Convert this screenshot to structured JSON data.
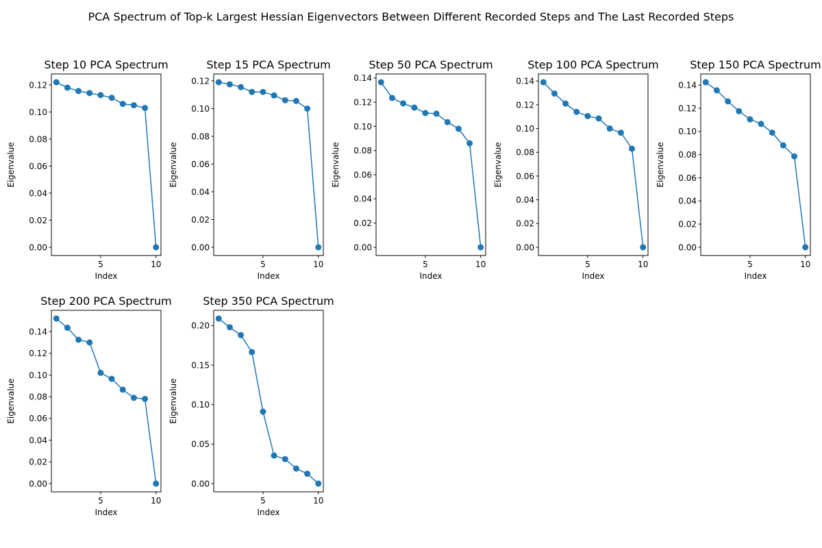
{
  "figure": {
    "suptitle": "PCA Spectrum of Top-k Largest Hessian Eigenvectors Between Different Recorded Steps and The Last Recorded Steps",
    "line_color": "#1f77b4"
  },
  "chart_data": [
    {
      "type": "line",
      "title": "Step 10 PCA Spectrum",
      "xlabel": "Index",
      "ylabel": "Eigenvalue",
      "x": [
        1,
        2,
        3,
        4,
        5,
        6,
        7,
        8,
        9,
        10
      ],
      "values": [
        0.122,
        0.118,
        0.1155,
        0.114,
        0.1125,
        0.1105,
        0.106,
        0.105,
        0.103,
        0.0
      ],
      "xlim": [
        0.55,
        10.45
      ],
      "ylim": [
        -0.0061,
        0.1281
      ],
      "xticks": [
        5,
        10
      ],
      "yticks": [
        0.0,
        0.02,
        0.04,
        0.06,
        0.08,
        0.1,
        0.12
      ],
      "ytick_labels": [
        "0.00",
        "0.02",
        "0.04",
        "0.06",
        "0.08",
        "0.10",
        "0.12"
      ]
    },
    {
      "type": "line",
      "title": "Step 15 PCA Spectrum",
      "xlabel": "Index",
      "ylabel": "Eigenvalue",
      "x": [
        1,
        2,
        3,
        4,
        5,
        6,
        7,
        8,
        9,
        10
      ],
      "values": [
        0.119,
        0.1175,
        0.1155,
        0.112,
        0.112,
        0.1095,
        0.106,
        0.1055,
        0.1,
        0.0
      ],
      "xlim": [
        0.55,
        10.45
      ],
      "ylim": [
        -0.00595,
        0.12495
      ],
      "xticks": [
        5,
        10
      ],
      "yticks": [
        0.0,
        0.02,
        0.04,
        0.06,
        0.08,
        0.1,
        0.12
      ],
      "ytick_labels": [
        "0.00",
        "0.02",
        "0.04",
        "0.06",
        "0.08",
        "0.10",
        "0.12"
      ]
    },
    {
      "type": "line",
      "title": "Step 50 PCA Spectrum",
      "xlabel": "Index",
      "ylabel": "Eigenvalue",
      "x": [
        1,
        2,
        3,
        4,
        5,
        6,
        7,
        8,
        9,
        10
      ],
      "values": [
        0.1365,
        0.1235,
        0.119,
        0.1155,
        0.111,
        0.1105,
        0.1035,
        0.098,
        0.086,
        0.0
      ],
      "xlim": [
        0.55,
        10.45
      ],
      "ylim": [
        -0.006825,
        0.143325
      ],
      "xticks": [
        5,
        10
      ],
      "yticks": [
        0.0,
        0.02,
        0.04,
        0.06,
        0.08,
        0.1,
        0.12,
        0.14
      ],
      "ytick_labels": [
        "0.00",
        "0.02",
        "0.04",
        "0.06",
        "0.08",
        "0.10",
        "0.12",
        "0.14"
      ]
    },
    {
      "type": "line",
      "title": "Step 100 PCA Spectrum",
      "xlabel": "Index",
      "ylabel": "Eigenvalue",
      "x": [
        1,
        2,
        3,
        4,
        5,
        6,
        7,
        8,
        9,
        10
      ],
      "values": [
        0.139,
        0.1295,
        0.121,
        0.114,
        0.1105,
        0.1085,
        0.1,
        0.0965,
        0.083,
        0.0
      ],
      "xlim": [
        0.55,
        10.45
      ],
      "ylim": [
        -0.00695,
        0.14595
      ],
      "xticks": [
        5,
        10
      ],
      "yticks": [
        0.0,
        0.02,
        0.04,
        0.06,
        0.08,
        0.1,
        0.12,
        0.14
      ],
      "ytick_labels": [
        "0.00",
        "0.02",
        "0.04",
        "0.06",
        "0.08",
        "0.10",
        "0.12",
        "0.14"
      ]
    },
    {
      "type": "line",
      "title": "Step 150 PCA Spectrum",
      "xlabel": "Index",
      "ylabel": "Eigenvalue",
      "x": [
        1,
        2,
        3,
        4,
        5,
        6,
        7,
        8,
        9,
        10
      ],
      "values": [
        0.1425,
        0.1355,
        0.126,
        0.1175,
        0.1105,
        0.1065,
        0.099,
        0.088,
        0.0785,
        0.0
      ],
      "xlim": [
        0.55,
        10.45
      ],
      "ylim": [
        -0.007125,
        0.149625
      ],
      "xticks": [
        5,
        10
      ],
      "yticks": [
        0.0,
        0.02,
        0.04,
        0.06,
        0.08,
        0.1,
        0.12,
        0.14
      ],
      "ytick_labels": [
        "0.00",
        "0.02",
        "0.04",
        "0.06",
        "0.08",
        "0.10",
        "0.12",
        "0.14"
      ]
    },
    {
      "type": "line",
      "title": "Step 200 PCA Spectrum",
      "xlabel": "Index",
      "ylabel": "Eigenvalue",
      "x": [
        1,
        2,
        3,
        4,
        5,
        6,
        7,
        8,
        9,
        10
      ],
      "values": [
        0.152,
        0.1435,
        0.1325,
        0.13,
        0.102,
        0.0965,
        0.0865,
        0.079,
        0.078,
        0.0
      ],
      "xlim": [
        0.55,
        10.45
      ],
      "ylim": [
        -0.0076,
        0.1596
      ],
      "xticks": [
        5,
        10
      ],
      "yticks": [
        0.0,
        0.02,
        0.04,
        0.06,
        0.08,
        0.1,
        0.12,
        0.14
      ],
      "ytick_labels": [
        "0.00",
        "0.02",
        "0.04",
        "0.06",
        "0.08",
        "0.10",
        "0.12",
        "0.14"
      ]
    },
    {
      "type": "line",
      "title": "Step 350 PCA Spectrum",
      "xlabel": "Index",
      "ylabel": "Eigenvalue",
      "x": [
        1,
        2,
        3,
        4,
        5,
        6,
        7,
        8,
        9,
        10
      ],
      "values": [
        0.209,
        0.198,
        0.188,
        0.1665,
        0.091,
        0.0355,
        0.031,
        0.019,
        0.0125,
        0.0
      ],
      "xlim": [
        0.55,
        10.45
      ],
      "ylim": [
        -0.01045,
        0.21945
      ],
      "xticks": [
        5,
        10
      ],
      "yticks": [
        0.0,
        0.05,
        0.1,
        0.15,
        0.2
      ],
      "ytick_labels": [
        "0.00",
        "0.05",
        "0.10",
        "0.15",
        "0.20"
      ]
    }
  ]
}
